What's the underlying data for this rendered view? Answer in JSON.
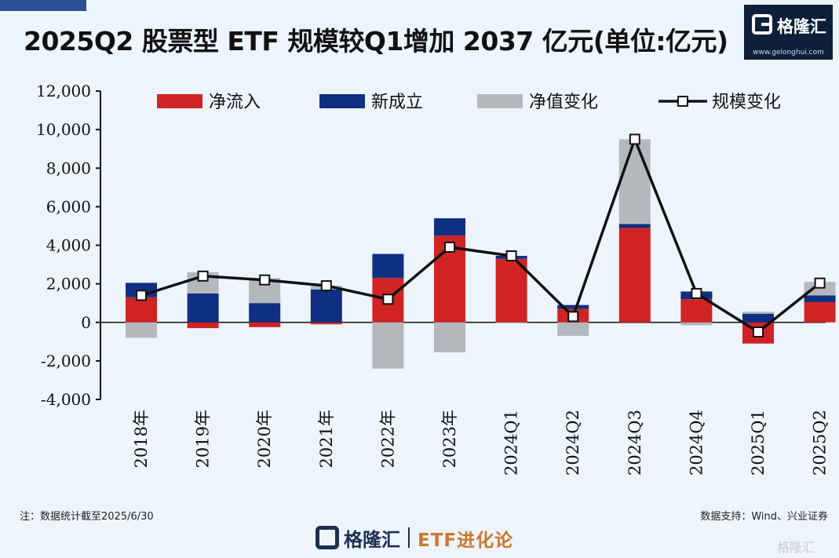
{
  "title": "2025Q2 股票型 ETF 规模较Q1增加 2037 亿元(单位:亿元)",
  "brand": {
    "name": "格隆汇",
    "url": "www.gelonghui.com",
    "footer_tagline": "ETF进化论",
    "corner_watermark": "格隆汇"
  },
  "note": "注：数据统计截至2025/6/30",
  "source": "数据支持：Wind、兴业证券",
  "colors": {
    "net_inflow": "#d02424",
    "new_listed": "#0f2f82",
    "nav_change": "#b4b8bd",
    "scale_change": "#111111"
  },
  "chart_data": {
    "type": "bar",
    "stacked": true,
    "categories": [
      "2018年",
      "2019年",
      "2020年",
      "2021年",
      "2022年",
      "2023年",
      "2024Q1",
      "2024Q2",
      "2024Q3",
      "2024Q4",
      "2025Q1",
      "2025Q2"
    ],
    "ylim": [
      -4000,
      12000
    ],
    "yticks": [
      -4000,
      -2000,
      0,
      2000,
      4000,
      6000,
      8000,
      10000,
      12000
    ],
    "ytick_labels": [
      "-4,000",
      "-2,000",
      "0",
      "2,000",
      "4,000",
      "6,000",
      "8,000",
      "10,000",
      "12,000"
    ],
    "legend_position": "top",
    "series": [
      {
        "name": "净流入",
        "kind": "bar",
        "values": [
          1300,
          -300,
          -250,
          -100,
          2300,
          4500,
          3300,
          700,
          4900,
          1200,
          -1100,
          1050
        ]
      },
      {
        "name": "新成立",
        "kind": "bar",
        "values": [
          750,
          1500,
          1000,
          1700,
          1250,
          900,
          150,
          200,
          200,
          400,
          450,
          350
        ]
      },
      {
        "name": "净值变化",
        "kind": "bar",
        "values": [
          -800,
          1100,
          1300,
          200,
          -2400,
          -1550,
          -50,
          -700,
          4400,
          -150,
          100,
          700
        ]
      },
      {
        "name": "规模变化",
        "kind": "line",
        "values": [
          1400,
          2400,
          2200,
          1900,
          1200,
          3900,
          3450,
          300,
          9500,
          1500,
          -500,
          2037
        ]
      }
    ]
  }
}
